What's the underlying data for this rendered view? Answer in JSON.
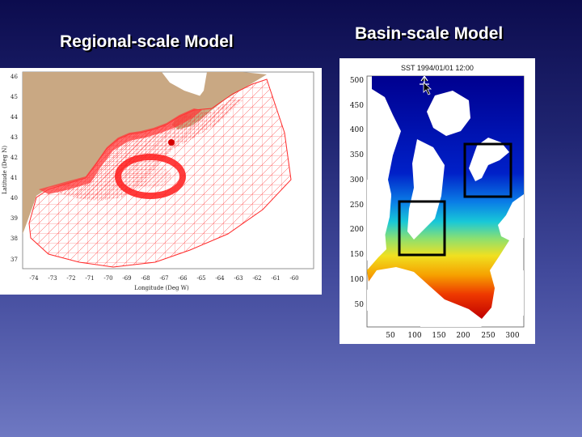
{
  "slide": {
    "left_title": "Regional-scale Model",
    "right_title": "Basin-scale Model"
  },
  "regional_map": {
    "ylabel": "Latitude (Deg N)",
    "xlabel": "Longitude (Deg W)",
    "lat_ticks": [
      "46",
      "45",
      "44",
      "43",
      "42",
      "41",
      "40",
      "39",
      "38",
      "37"
    ],
    "lon_ticks": [
      "-74",
      "-73",
      "-72",
      "-71",
      "-70",
      "-69",
      "-68",
      "-67",
      "-66",
      "-65",
      "-64",
      "-63",
      "-62",
      "-61",
      "-60"
    ],
    "colors": {
      "land": "#c9a883",
      "mesh": "#ff2a2a",
      "mesh_dense": "#ff6f6f"
    }
  },
  "basin_map": {
    "title": "SST 1994/01/01 12:00",
    "y_ticks": [
      "500",
      "450",
      "400",
      "350",
      "300",
      "250",
      "200",
      "150",
      "100",
      "50"
    ],
    "x_ticks": [
      "50",
      "100",
      "150",
      "200",
      "250",
      "300"
    ],
    "colors": {
      "cold": "#00008f",
      "mid": "#0aa8e8",
      "warm": "#f0c800",
      "hot": "#d80000"
    }
  }
}
